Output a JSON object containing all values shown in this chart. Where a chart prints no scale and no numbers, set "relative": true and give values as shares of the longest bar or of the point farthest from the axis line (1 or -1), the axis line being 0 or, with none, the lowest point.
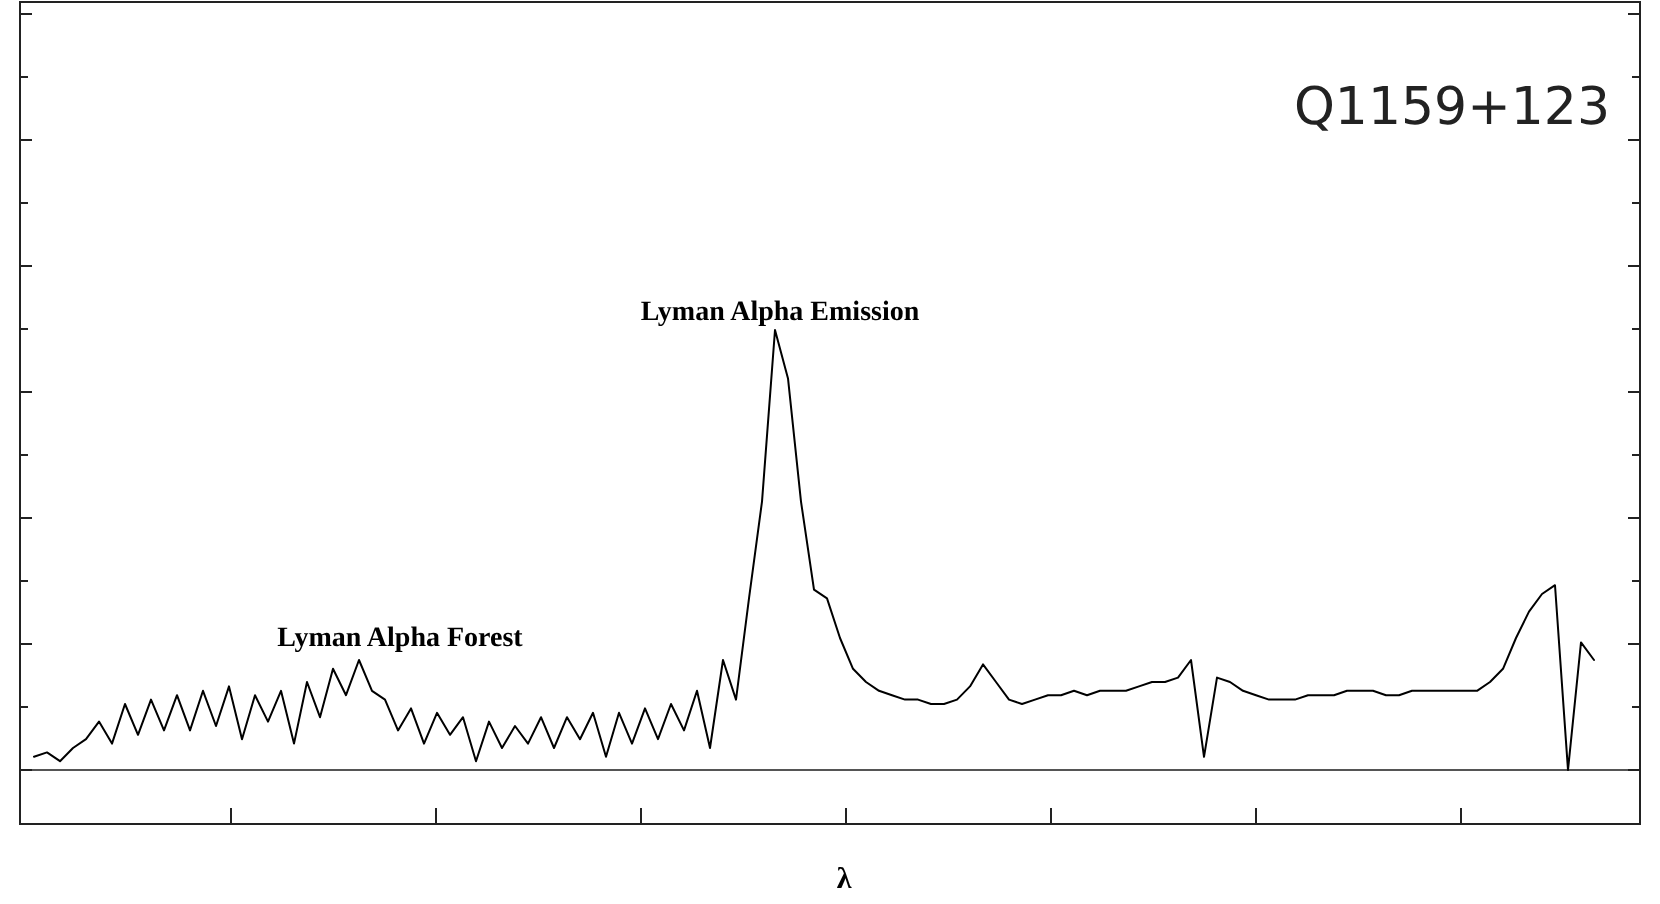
{
  "chart_data": {
    "type": "line",
    "title": "Q1159+123",
    "xlabel": "λ",
    "relative": true,
    "annotations": [
      "Lyman Alpha Emission",
      "Lyman Alpha Forest"
    ],
    "categories": [
      null,
      null,
      null,
      null,
      null,
      null,
      null,
      null,
      null,
      null,
      null,
      null,
      null,
      null,
      null,
      null,
      null,
      null,
      null,
      null,
      null,
      null,
      null,
      null,
      null,
      null,
      null,
      null,
      null,
      null,
      null,
      null,
      null,
      null,
      null,
      null,
      null,
      null,
      null,
      null,
      null,
      null,
      null,
      null,
      null,
      null,
      null,
      null,
      null,
      null,
      null,
      null,
      null,
      null,
      null,
      null,
      null,
      null,
      null,
      null,
      null,
      null,
      null,
      null,
      null,
      null,
      null,
      null,
      null,
      null,
      null,
      null,
      null,
      null,
      null,
      null,
      null,
      null,
      null,
      null,
      null,
      null,
      null,
      null,
      null,
      null,
      null,
      null,
      null,
      null,
      null,
      null,
      null,
      null,
      null,
      null,
      null,
      null,
      null,
      null,
      null,
      null,
      null,
      null,
      null,
      null,
      null,
      null,
      null,
      null,
      null,
      null,
      null,
      null,
      null,
      null,
      null,
      null,
      null,
      null,
      null
    ],
    "series": [
      {
        "color": "#000000",
        "values": [
          0.03,
          0.04,
          0.02,
          0.05,
          0.07,
          0.11,
          0.06,
          0.15,
          0.08,
          0.16,
          0.09,
          0.17,
          0.09,
          0.18,
          0.1,
          0.19,
          0.07,
          0.17,
          0.11,
          0.18,
          0.06,
          0.2,
          0.12,
          0.23,
          0.17,
          0.25,
          0.18,
          0.16,
          0.09,
          0.14,
          0.06,
          0.13,
          0.08,
          0.12,
          0.02,
          0.11,
          0.05,
          0.1,
          0.06,
          0.12,
          0.05,
          0.12,
          0.07,
          0.13,
          0.03,
          0.13,
          0.06,
          0.14,
          0.07,
          0.15,
          0.09,
          0.18,
          0.05,
          0.25,
          0.16,
          0.39,
          0.61,
          1,
          0.89,
          0.61,
          0.41,
          0.39,
          0.3,
          0.23,
          0.2,
          0.18,
          0.17,
          0.16,
          0.16,
          0.15,
          0.15,
          0.16,
          0.19,
          0.24,
          0.2,
          0.16,
          0.15,
          0.16,
          0.17,
          0.17,
          0.18,
          0.17,
          0.18,
          0.18,
          0.18,
          0.19,
          0.2,
          0.2,
          0.21,
          0.25,
          0.03,
          0.21,
          0.2,
          0.18,
          0.17,
          0.16,
          0.16,
          0.16,
          0.17,
          0.17,
          0.17,
          0.18,
          0.18,
          0.18,
          0.17,
          0.17,
          0.18,
          0.18,
          0.18,
          0.18,
          0.18,
          0.18,
          0.2,
          0.23,
          0.3,
          0.36,
          0.4,
          0.42,
          0,
          0.29,
          0.25
        ]
      }
    ],
    "marker": "none",
    "line_style": "solid"
  }
}
